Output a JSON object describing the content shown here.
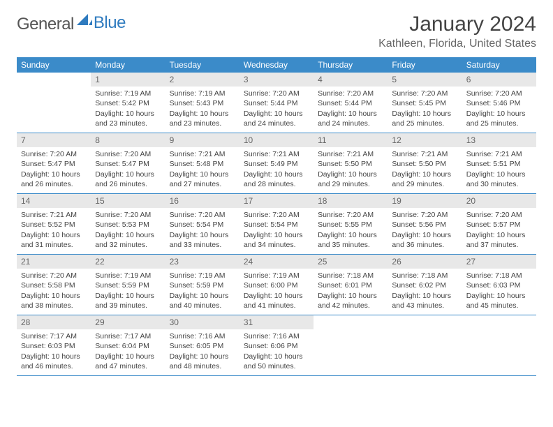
{
  "logo": {
    "text1": "General",
    "text2": "Blue"
  },
  "title": "January 2024",
  "location": "Kathleen, Florida, United States",
  "colors": {
    "header_bg": "#3b8bc9",
    "daynum_bg": "#e8e8e8",
    "border": "#3b8bc9"
  },
  "weekdays": [
    "Sunday",
    "Monday",
    "Tuesday",
    "Wednesday",
    "Thursday",
    "Friday",
    "Saturday"
  ],
  "weeks": [
    [
      {
        "n": "",
        "sr": "",
        "ss": "",
        "dl": ""
      },
      {
        "n": "1",
        "sr": "Sunrise: 7:19 AM",
        "ss": "Sunset: 5:42 PM",
        "dl": "Daylight: 10 hours and 23 minutes."
      },
      {
        "n": "2",
        "sr": "Sunrise: 7:19 AM",
        "ss": "Sunset: 5:43 PM",
        "dl": "Daylight: 10 hours and 23 minutes."
      },
      {
        "n": "3",
        "sr": "Sunrise: 7:20 AM",
        "ss": "Sunset: 5:44 PM",
        "dl": "Daylight: 10 hours and 24 minutes."
      },
      {
        "n": "4",
        "sr": "Sunrise: 7:20 AM",
        "ss": "Sunset: 5:44 PM",
        "dl": "Daylight: 10 hours and 24 minutes."
      },
      {
        "n": "5",
        "sr": "Sunrise: 7:20 AM",
        "ss": "Sunset: 5:45 PM",
        "dl": "Daylight: 10 hours and 25 minutes."
      },
      {
        "n": "6",
        "sr": "Sunrise: 7:20 AM",
        "ss": "Sunset: 5:46 PM",
        "dl": "Daylight: 10 hours and 25 minutes."
      }
    ],
    [
      {
        "n": "7",
        "sr": "Sunrise: 7:20 AM",
        "ss": "Sunset: 5:47 PM",
        "dl": "Daylight: 10 hours and 26 minutes."
      },
      {
        "n": "8",
        "sr": "Sunrise: 7:20 AM",
        "ss": "Sunset: 5:47 PM",
        "dl": "Daylight: 10 hours and 26 minutes."
      },
      {
        "n": "9",
        "sr": "Sunrise: 7:21 AM",
        "ss": "Sunset: 5:48 PM",
        "dl": "Daylight: 10 hours and 27 minutes."
      },
      {
        "n": "10",
        "sr": "Sunrise: 7:21 AM",
        "ss": "Sunset: 5:49 PM",
        "dl": "Daylight: 10 hours and 28 minutes."
      },
      {
        "n": "11",
        "sr": "Sunrise: 7:21 AM",
        "ss": "Sunset: 5:50 PM",
        "dl": "Daylight: 10 hours and 29 minutes."
      },
      {
        "n": "12",
        "sr": "Sunrise: 7:21 AM",
        "ss": "Sunset: 5:50 PM",
        "dl": "Daylight: 10 hours and 29 minutes."
      },
      {
        "n": "13",
        "sr": "Sunrise: 7:21 AM",
        "ss": "Sunset: 5:51 PM",
        "dl": "Daylight: 10 hours and 30 minutes."
      }
    ],
    [
      {
        "n": "14",
        "sr": "Sunrise: 7:21 AM",
        "ss": "Sunset: 5:52 PM",
        "dl": "Daylight: 10 hours and 31 minutes."
      },
      {
        "n": "15",
        "sr": "Sunrise: 7:20 AM",
        "ss": "Sunset: 5:53 PM",
        "dl": "Daylight: 10 hours and 32 minutes."
      },
      {
        "n": "16",
        "sr": "Sunrise: 7:20 AM",
        "ss": "Sunset: 5:54 PM",
        "dl": "Daylight: 10 hours and 33 minutes."
      },
      {
        "n": "17",
        "sr": "Sunrise: 7:20 AM",
        "ss": "Sunset: 5:54 PM",
        "dl": "Daylight: 10 hours and 34 minutes."
      },
      {
        "n": "18",
        "sr": "Sunrise: 7:20 AM",
        "ss": "Sunset: 5:55 PM",
        "dl": "Daylight: 10 hours and 35 minutes."
      },
      {
        "n": "19",
        "sr": "Sunrise: 7:20 AM",
        "ss": "Sunset: 5:56 PM",
        "dl": "Daylight: 10 hours and 36 minutes."
      },
      {
        "n": "20",
        "sr": "Sunrise: 7:20 AM",
        "ss": "Sunset: 5:57 PM",
        "dl": "Daylight: 10 hours and 37 minutes."
      }
    ],
    [
      {
        "n": "21",
        "sr": "Sunrise: 7:20 AM",
        "ss": "Sunset: 5:58 PM",
        "dl": "Daylight: 10 hours and 38 minutes."
      },
      {
        "n": "22",
        "sr": "Sunrise: 7:19 AM",
        "ss": "Sunset: 5:59 PM",
        "dl": "Daylight: 10 hours and 39 minutes."
      },
      {
        "n": "23",
        "sr": "Sunrise: 7:19 AM",
        "ss": "Sunset: 5:59 PM",
        "dl": "Daylight: 10 hours and 40 minutes."
      },
      {
        "n": "24",
        "sr": "Sunrise: 7:19 AM",
        "ss": "Sunset: 6:00 PM",
        "dl": "Daylight: 10 hours and 41 minutes."
      },
      {
        "n": "25",
        "sr": "Sunrise: 7:18 AM",
        "ss": "Sunset: 6:01 PM",
        "dl": "Daylight: 10 hours and 42 minutes."
      },
      {
        "n": "26",
        "sr": "Sunrise: 7:18 AM",
        "ss": "Sunset: 6:02 PM",
        "dl": "Daylight: 10 hours and 43 minutes."
      },
      {
        "n": "27",
        "sr": "Sunrise: 7:18 AM",
        "ss": "Sunset: 6:03 PM",
        "dl": "Daylight: 10 hours and 45 minutes."
      }
    ],
    [
      {
        "n": "28",
        "sr": "Sunrise: 7:17 AM",
        "ss": "Sunset: 6:03 PM",
        "dl": "Daylight: 10 hours and 46 minutes."
      },
      {
        "n": "29",
        "sr": "Sunrise: 7:17 AM",
        "ss": "Sunset: 6:04 PM",
        "dl": "Daylight: 10 hours and 47 minutes."
      },
      {
        "n": "30",
        "sr": "Sunrise: 7:16 AM",
        "ss": "Sunset: 6:05 PM",
        "dl": "Daylight: 10 hours and 48 minutes."
      },
      {
        "n": "31",
        "sr": "Sunrise: 7:16 AM",
        "ss": "Sunset: 6:06 PM",
        "dl": "Daylight: 10 hours and 50 minutes."
      },
      {
        "n": "",
        "sr": "",
        "ss": "",
        "dl": ""
      },
      {
        "n": "",
        "sr": "",
        "ss": "",
        "dl": ""
      },
      {
        "n": "",
        "sr": "",
        "ss": "",
        "dl": ""
      }
    ]
  ]
}
